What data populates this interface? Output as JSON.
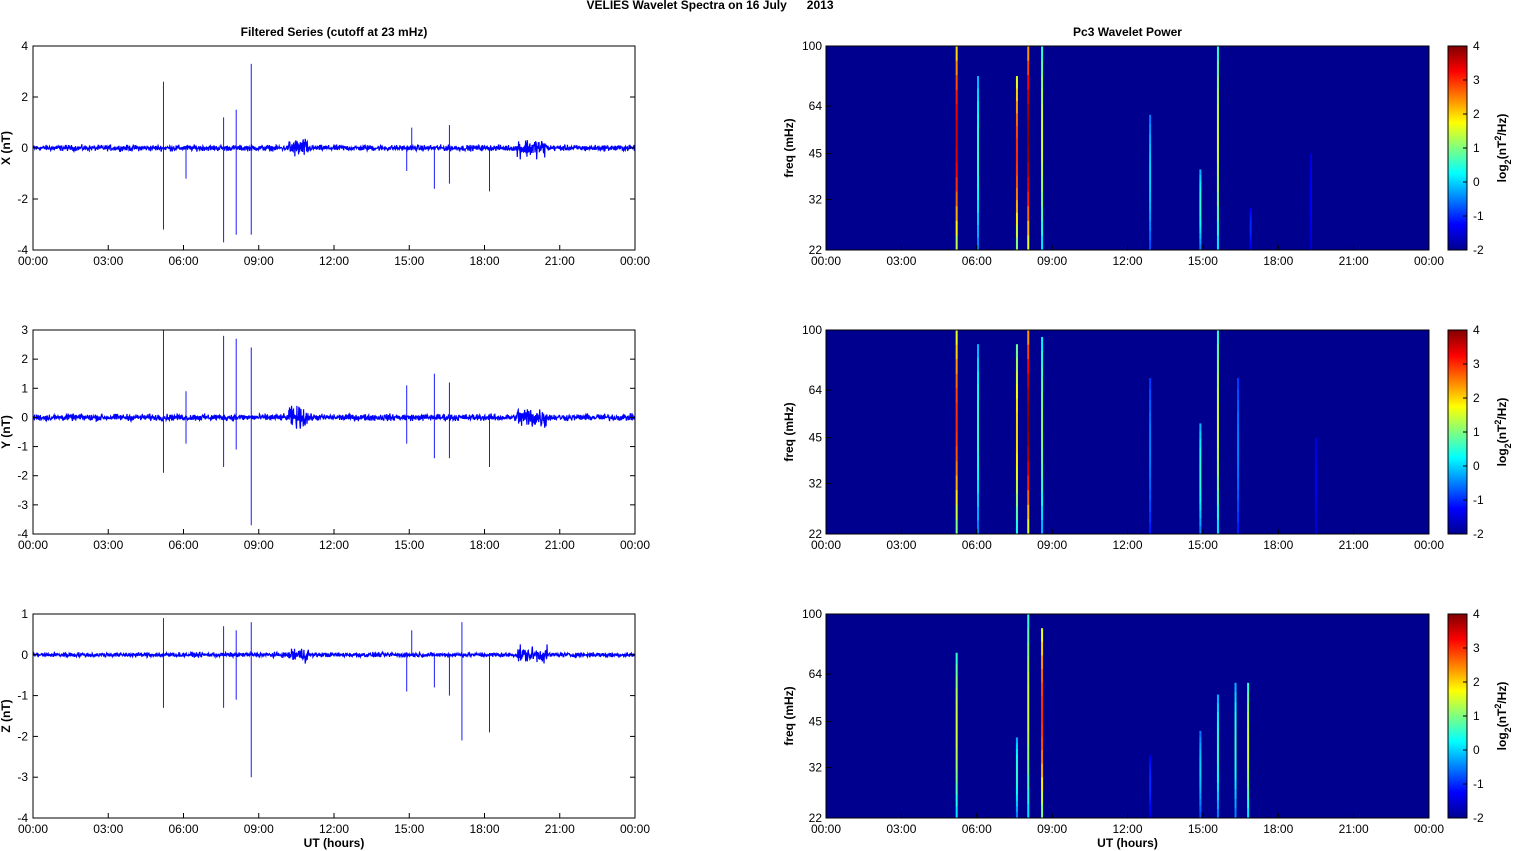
{
  "figure": {
    "title": "VELIES Wavelet Spectra on 16 July      2013",
    "left_title": "Filtered Series (cutoff at 23 mHz)",
    "right_title": "Pc3 Wavelet Power",
    "xlabel": "UT (hours)",
    "time_ticks": [
      "00:00",
      "03:00",
      "06:00",
      "09:00",
      "12:00",
      "15:00",
      "18:00",
      "21:00",
      "00:00"
    ],
    "freq_label": "freq (mHz)",
    "freq_ticks": [
      "22",
      "32",
      "45",
      "64",
      "100"
    ],
    "colorbar_label": "log2(nT2/Hz)",
    "colorbar_ticks": [
      "-2",
      "-1",
      "0",
      "1",
      "2",
      "3",
      "4"
    ],
    "colors": {
      "series": "#0000ff",
      "background": "#00008f"
    }
  },
  "chart_data": [
    {
      "type": "line",
      "component": "X",
      "ylabel": "X (nT)",
      "ylim": [
        -4,
        4
      ],
      "yticks": [
        -4,
        -2,
        0,
        2,
        4
      ],
      "xlim": [
        0,
        24
      ],
      "baseline_noise_nT": 0.1,
      "active_intervals_hours": [
        [
          10.2,
          11.0
        ],
        [
          19.3,
          20.5
        ]
      ],
      "spikes": [
        [
          5.2,
          2.6
        ],
        [
          5.2,
          -3.2
        ],
        [
          6.1,
          -1.2
        ],
        [
          7.6,
          1.2
        ],
        [
          7.6,
          -3.7
        ],
        [
          8.1,
          1.5
        ],
        [
          8.1,
          -3.4
        ],
        [
          8.7,
          3.3
        ],
        [
          8.7,
          -3.4
        ],
        [
          14.9,
          -0.9
        ],
        [
          15.1,
          0.8
        ],
        [
          16.0,
          -1.6
        ],
        [
          16.6,
          0.9
        ],
        [
          16.6,
          -1.4
        ],
        [
          18.2,
          -1.7
        ]
      ]
    },
    {
      "type": "line",
      "component": "Y",
      "ylabel": "Y (nT)",
      "ylim": [
        -4,
        3
      ],
      "yticks": [
        -4,
        -3,
        -2,
        -1,
        0,
        1,
        2,
        3
      ],
      "xlim": [
        0,
        24
      ],
      "baseline_noise_nT": 0.1,
      "active_intervals_hours": [
        [
          10.2,
          11.0
        ],
        [
          19.3,
          20.5
        ]
      ],
      "spikes": [
        [
          5.2,
          3.0
        ],
        [
          5.2,
          -1.9
        ],
        [
          6.1,
          0.9
        ],
        [
          6.1,
          -0.9
        ],
        [
          7.6,
          2.8
        ],
        [
          7.6,
          -1.7
        ],
        [
          8.1,
          2.7
        ],
        [
          8.1,
          -1.1
        ],
        [
          8.7,
          2.4
        ],
        [
          8.7,
          -3.7
        ],
        [
          14.9,
          1.1
        ],
        [
          14.9,
          -0.9
        ],
        [
          16.0,
          1.5
        ],
        [
          16.0,
          -1.4
        ],
        [
          16.6,
          1.2
        ],
        [
          16.6,
          -1.4
        ],
        [
          18.2,
          -1.7
        ]
      ]
    },
    {
      "type": "line",
      "component": "Z",
      "ylabel": "Z (nT)",
      "ylim": [
        -4,
        1
      ],
      "yticks": [
        -4,
        -3,
        -2,
        -1,
        0,
        1
      ],
      "xlim": [
        0,
        24
      ],
      "baseline_noise_nT": 0.05,
      "active_intervals_hours": [
        [
          10.2,
          11.0
        ],
        [
          19.3,
          20.5
        ]
      ],
      "spikes": [
        [
          5.2,
          0.9
        ],
        [
          5.2,
          -1.3
        ],
        [
          7.6,
          0.7
        ],
        [
          7.6,
          -1.3
        ],
        [
          8.1,
          0.6
        ],
        [
          8.1,
          -1.1
        ],
        [
          8.7,
          0.8
        ],
        [
          8.7,
          -3.0
        ],
        [
          14.9,
          -0.9
        ],
        [
          15.1,
          0.6
        ],
        [
          16.0,
          -0.8
        ],
        [
          16.6,
          -1.0
        ],
        [
          17.1,
          0.8
        ],
        [
          17.1,
          -2.1
        ],
        [
          18.2,
          -1.9
        ]
      ]
    },
    {
      "type": "heatmap",
      "component": "X",
      "title": "Pc3 Wavelet Power",
      "ylabel": "freq (mHz)",
      "ylim_mHz": [
        22,
        100
      ],
      "clim": [
        -2,
        4
      ],
      "background_value": -2,
      "streaks": [
        [
          5.2,
          100,
          3.5
        ],
        [
          6.05,
          80,
          0.5
        ],
        [
          7.6,
          80,
          3.0
        ],
        [
          8.05,
          100,
          4.0
        ],
        [
          8.6,
          100,
          1.5
        ],
        [
          12.9,
          60,
          0.0
        ],
        [
          14.9,
          40,
          0.5
        ],
        [
          15.6,
          100,
          1.5
        ],
        [
          16.9,
          30,
          -1.0
        ],
        [
          19.3,
          45,
          -1.3
        ]
      ]
    },
    {
      "type": "heatmap",
      "component": "Y",
      "title": "",
      "ylabel": "freq (mHz)",
      "ylim_mHz": [
        22,
        100
      ],
      "clim": [
        -2,
        4
      ],
      "background_value": -2,
      "streaks": [
        [
          5.2,
          100,
          3.0
        ],
        [
          6.05,
          90,
          0.5
        ],
        [
          7.6,
          90,
          2.0
        ],
        [
          8.05,
          100,
          4.0
        ],
        [
          8.6,
          95,
          1.0
        ],
        [
          12.9,
          70,
          -0.5
        ],
        [
          14.9,
          50,
          0.5
        ],
        [
          15.6,
          100,
          1.5
        ],
        [
          16.4,
          70,
          -0.5
        ],
        [
          19.5,
          45,
          -1.3
        ]
      ]
    },
    {
      "type": "heatmap",
      "component": "Z",
      "title": "",
      "ylabel": "freq (mHz)",
      "ylim_mHz": [
        22,
        100
      ],
      "clim": [
        -2,
        4
      ],
      "background_value": -2,
      "streaks": [
        [
          5.2,
          75,
          1.5
        ],
        [
          7.6,
          40,
          0.5
        ],
        [
          8.05,
          100,
          1.5
        ],
        [
          8.6,
          90,
          3.0
        ],
        [
          12.9,
          35,
          -1.0
        ],
        [
          14.9,
          42,
          0.0
        ],
        [
          15.6,
          55,
          0.5
        ],
        [
          16.3,
          60,
          0.5
        ],
        [
          16.8,
          60,
          1.5
        ]
      ]
    }
  ]
}
